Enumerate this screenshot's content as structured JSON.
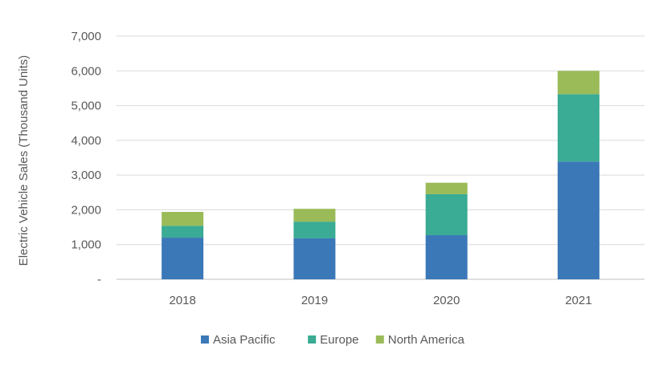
{
  "chart_data": {
    "type": "bar",
    "stacked": true,
    "categories": [
      "2018",
      "2019",
      "2020",
      "2021"
    ],
    "series": [
      {
        "name": "Asia Pacific",
        "color": "#3a78b8",
        "values": [
          1200,
          1180,
          1270,
          3390
        ]
      },
      {
        "name": "Europe",
        "color": "#3aab94",
        "values": [
          340,
          480,
          1180,
          1940
        ]
      },
      {
        "name": "North America",
        "color": "#9bbb59",
        "values": [
          400,
          370,
          330,
          670
        ]
      }
    ],
    "ylabel": "Electric Vehicle Sales (Thousand Units)",
    "xlabel": "",
    "ylim": [
      0,
      7000
    ],
    "yticks": [
      0,
      1000,
      2000,
      3000,
      4000,
      5000,
      6000,
      7000
    ],
    "ytick_labels": [
      "-",
      "1,000",
      "2,000",
      "3,000",
      "4,000",
      "5,000",
      "6,000",
      "7,000"
    ],
    "grid": true,
    "legend_position": "bottom"
  }
}
